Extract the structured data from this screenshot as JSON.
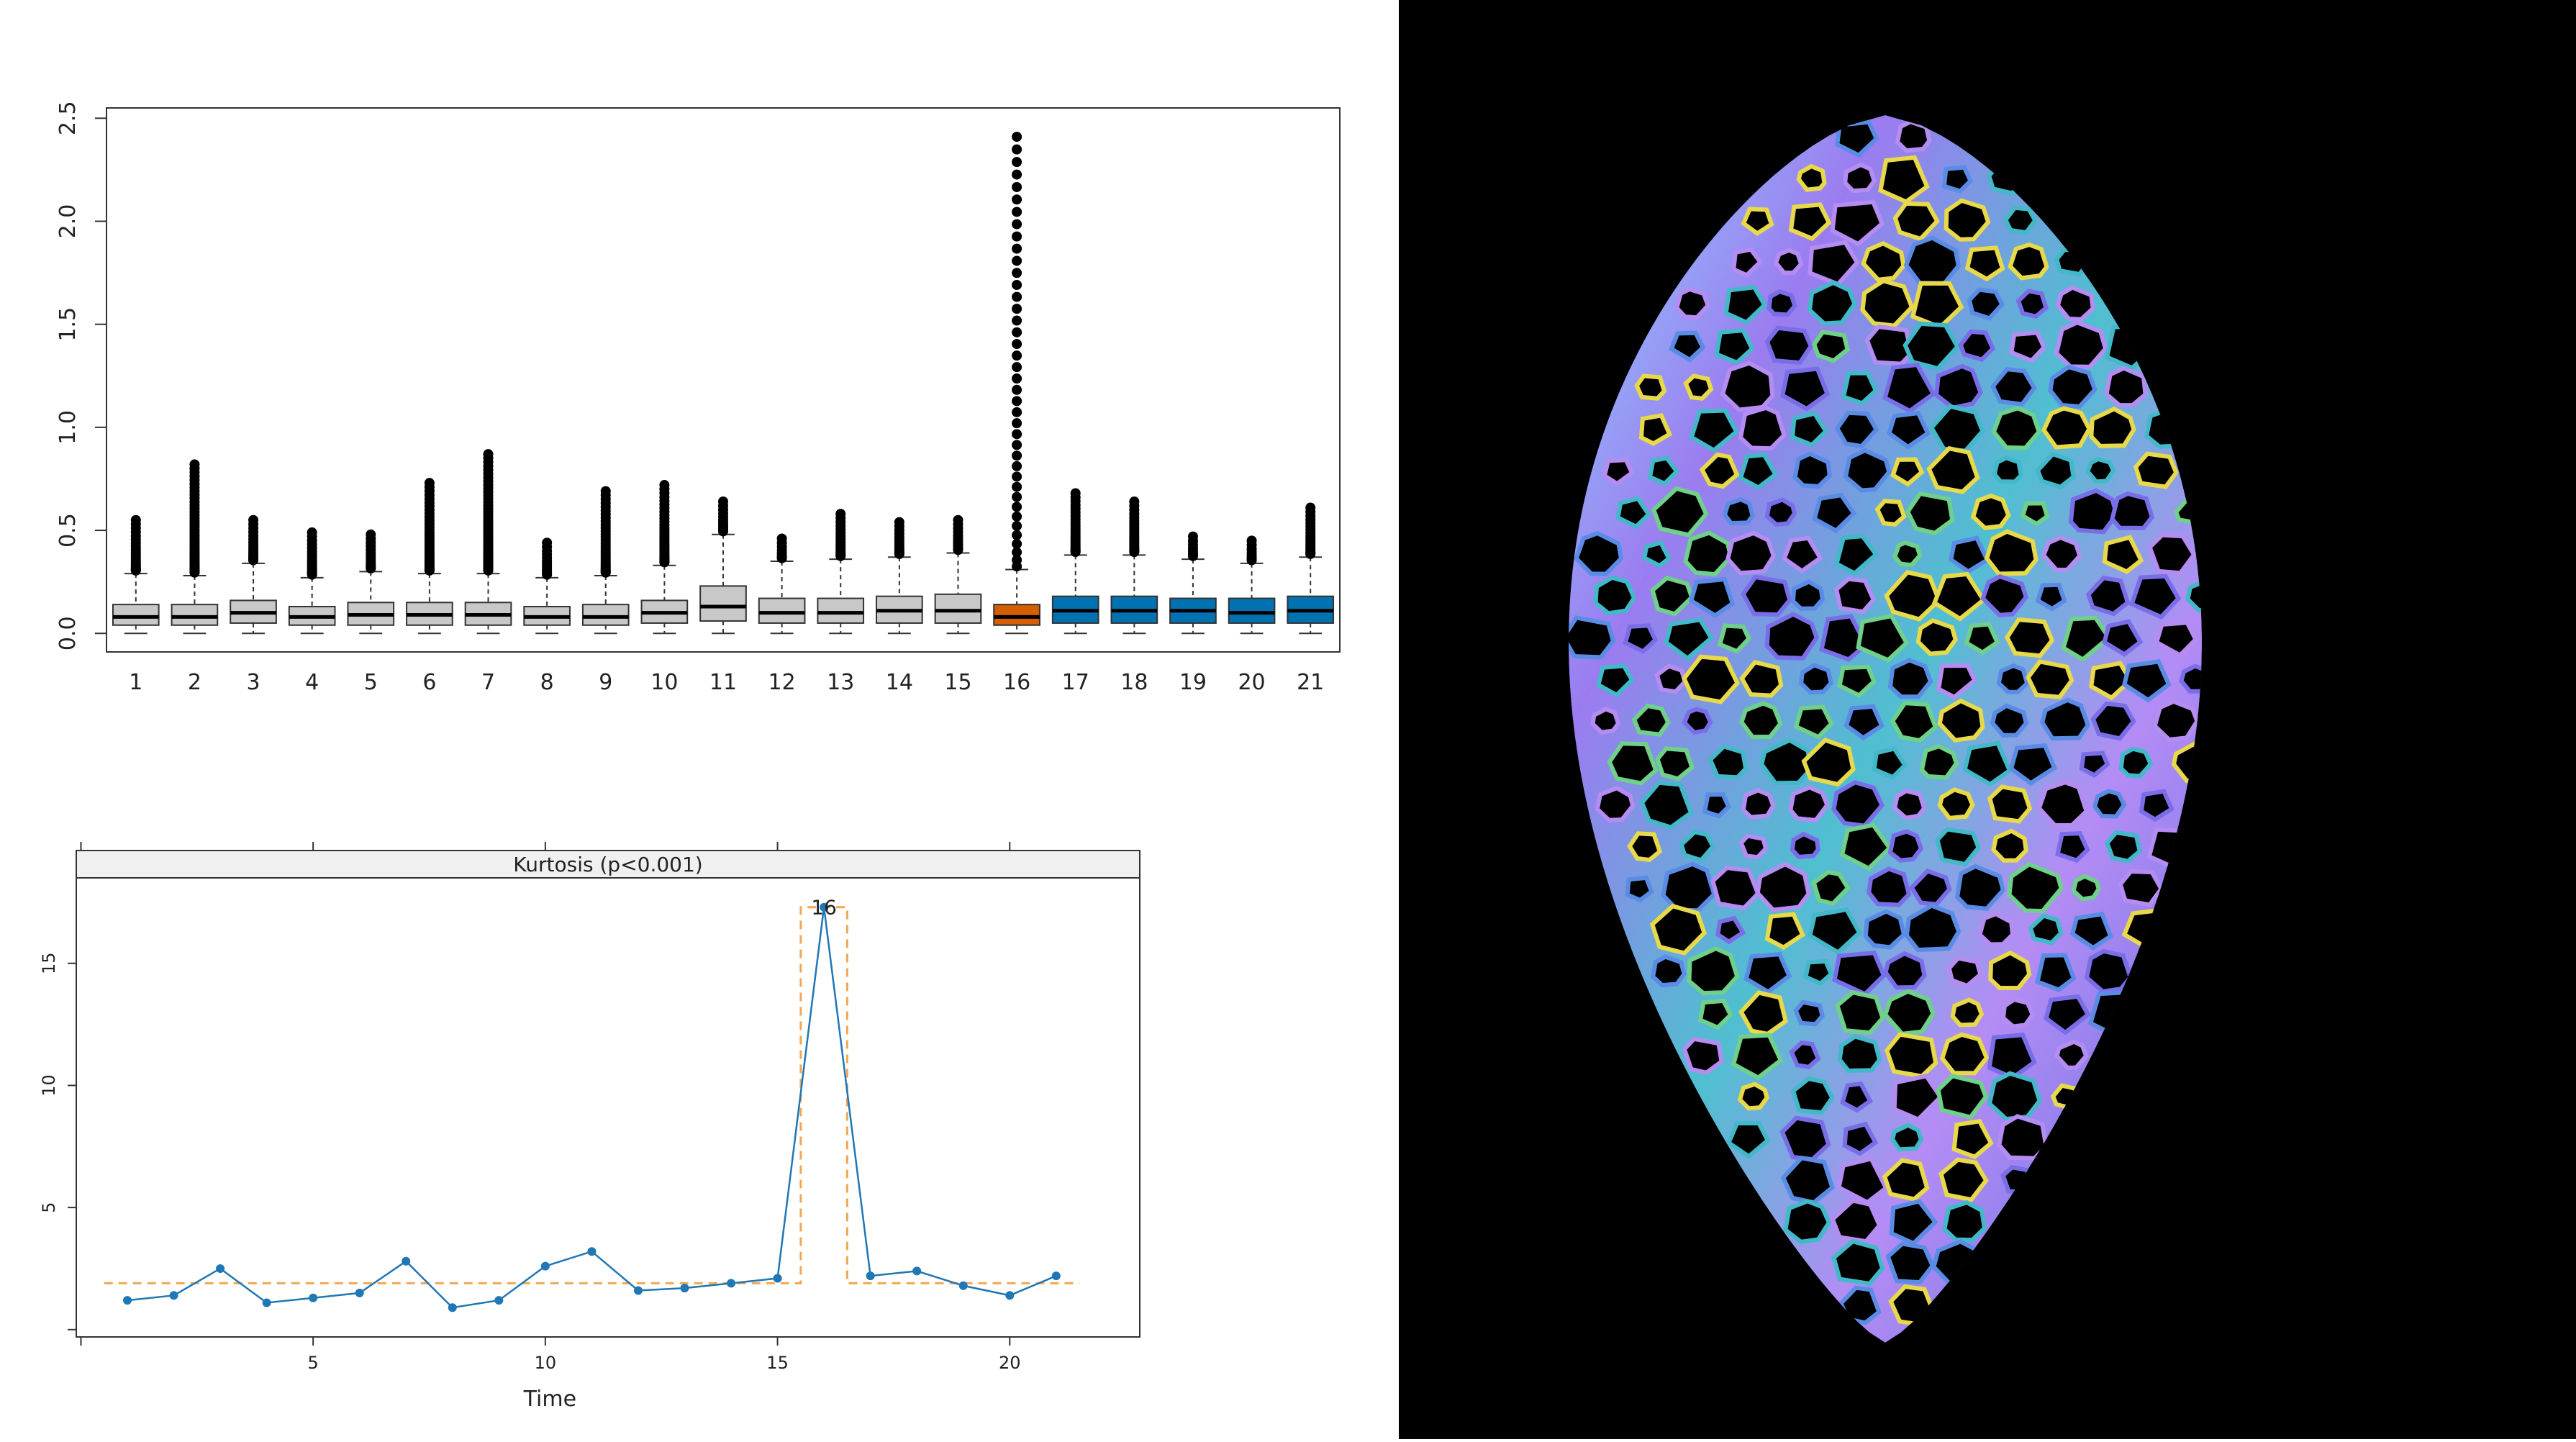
{
  "chart_data": [
    {
      "type": "box",
      "title": "",
      "xlabel": "",
      "ylabel": "",
      "ylim": [
        -0.09,
        2.55
      ],
      "y_ticks": [
        "0.0",
        "0.5",
        "1.0",
        "1.5",
        "2.0",
        "2.5"
      ],
      "y_tick_values": [
        0,
        0.5,
        1.0,
        1.5,
        2.0,
        2.5
      ],
      "categories": [
        "1",
        "2",
        "3",
        "4",
        "5",
        "6",
        "7",
        "8",
        "9",
        "10",
        "11",
        "12",
        "13",
        "14",
        "15",
        "16",
        "17",
        "18",
        "19",
        "20",
        "21"
      ],
      "colors": {
        "default": "#c8c8c8",
        "highlight": "#d55e00",
        "after": "#0072b2"
      },
      "boxes": [
        {
          "label": "1",
          "q1": 0.04,
          "median": 0.08,
          "q3": 0.14,
          "whisker_low": 0.0,
          "whisker_high": 0.29,
          "outlier_max": 0.55,
          "group": "default"
        },
        {
          "label": "2",
          "q1": 0.04,
          "median": 0.08,
          "q3": 0.14,
          "whisker_low": 0.0,
          "whisker_high": 0.28,
          "outlier_max": 0.82,
          "group": "default"
        },
        {
          "label": "3",
          "q1": 0.05,
          "median": 0.1,
          "q3": 0.16,
          "whisker_low": 0.0,
          "whisker_high": 0.34,
          "outlier_max": 0.55,
          "group": "default"
        },
        {
          "label": "4",
          "q1": 0.04,
          "median": 0.08,
          "q3": 0.13,
          "whisker_low": 0.0,
          "whisker_high": 0.27,
          "outlier_max": 0.49,
          "group": "default"
        },
        {
          "label": "5",
          "q1": 0.04,
          "median": 0.09,
          "q3": 0.15,
          "whisker_low": 0.0,
          "whisker_high": 0.3,
          "outlier_max": 0.48,
          "group": "default"
        },
        {
          "label": "6",
          "q1": 0.04,
          "median": 0.09,
          "q3": 0.15,
          "whisker_low": 0.0,
          "whisker_high": 0.29,
          "outlier_max": 0.73,
          "group": "default"
        },
        {
          "label": "7",
          "q1": 0.04,
          "median": 0.09,
          "q3": 0.15,
          "whisker_low": 0.0,
          "whisker_high": 0.29,
          "outlier_max": 0.87,
          "group": "default"
        },
        {
          "label": "8",
          "q1": 0.04,
          "median": 0.08,
          "q3": 0.13,
          "whisker_low": 0.0,
          "whisker_high": 0.27,
          "outlier_max": 0.44,
          "group": "default"
        },
        {
          "label": "9",
          "q1": 0.04,
          "median": 0.08,
          "q3": 0.14,
          "whisker_low": 0.0,
          "whisker_high": 0.28,
          "outlier_max": 0.69,
          "group": "default"
        },
        {
          "label": "10",
          "q1": 0.05,
          "median": 0.1,
          "q3": 0.16,
          "whisker_low": 0.0,
          "whisker_high": 0.33,
          "outlier_max": 0.72,
          "group": "default"
        },
        {
          "label": "11",
          "q1": 0.06,
          "median": 0.13,
          "q3": 0.23,
          "whisker_low": 0.0,
          "whisker_high": 0.48,
          "outlier_max": 0.64,
          "group": "default"
        },
        {
          "label": "12",
          "q1": 0.05,
          "median": 0.1,
          "q3": 0.17,
          "whisker_low": 0.0,
          "whisker_high": 0.35,
          "outlier_max": 0.46,
          "group": "default"
        },
        {
          "label": "13",
          "q1": 0.05,
          "median": 0.1,
          "q3": 0.17,
          "whisker_low": 0.0,
          "whisker_high": 0.36,
          "outlier_max": 0.58,
          "group": "default"
        },
        {
          "label": "14",
          "q1": 0.05,
          "median": 0.11,
          "q3": 0.18,
          "whisker_low": 0.0,
          "whisker_high": 0.37,
          "outlier_max": 0.54,
          "group": "default"
        },
        {
          "label": "15",
          "q1": 0.05,
          "median": 0.11,
          "q3": 0.19,
          "whisker_low": 0.0,
          "whisker_high": 0.39,
          "outlier_max": 0.55,
          "group": "default"
        },
        {
          "label": "16",
          "q1": 0.04,
          "median": 0.08,
          "q3": 0.14,
          "whisker_low": 0.0,
          "whisker_high": 0.31,
          "outlier_max": 2.41,
          "group": "highlight"
        },
        {
          "label": "17",
          "q1": 0.05,
          "median": 0.11,
          "q3": 0.18,
          "whisker_low": 0.0,
          "whisker_high": 0.38,
          "outlier_max": 0.68,
          "group": "after"
        },
        {
          "label": "18",
          "q1": 0.05,
          "median": 0.11,
          "q3": 0.18,
          "whisker_low": 0.0,
          "whisker_high": 0.38,
          "outlier_max": 0.64,
          "group": "after"
        },
        {
          "label": "19",
          "q1": 0.05,
          "median": 0.11,
          "q3": 0.17,
          "whisker_low": 0.0,
          "whisker_high": 0.36,
          "outlier_max": 0.47,
          "group": "after"
        },
        {
          "label": "20",
          "q1": 0.05,
          "median": 0.1,
          "q3": 0.17,
          "whisker_low": 0.0,
          "whisker_high": 0.34,
          "outlier_max": 0.45,
          "group": "after"
        },
        {
          "label": "21",
          "q1": 0.05,
          "median": 0.11,
          "q3": 0.18,
          "whisker_low": 0.0,
          "whisker_high": 0.37,
          "outlier_max": 0.61,
          "group": "after"
        }
      ],
      "grid": false
    },
    {
      "type": "line",
      "title": "Kurtosis (p<0.001)",
      "xlabel": "Time",
      "ylabel": "",
      "xlim": [
        -0.1,
        22.8
      ],
      "ylim": [
        -0.3,
        18.5
      ],
      "x_ticks": [
        "5",
        "10",
        "15",
        "20"
      ],
      "x_tick_values": [
        5,
        10,
        15,
        20
      ],
      "y_ticks": [
        "5",
        "10",
        "15"
      ],
      "y_tick_values": [
        5,
        10,
        15
      ],
      "series": [
        {
          "color": "#1f77b4",
          "x": [
            1,
            2,
            3,
            4,
            5,
            6,
            7,
            8,
            9,
            10,
            11,
            12,
            13,
            14,
            15,
            16,
            17,
            18,
            19,
            20,
            21
          ],
          "y": [
            1.2,
            1.4,
            2.5,
            1.1,
            1.3,
            1.5,
            2.8,
            0.9,
            1.2,
            2.6,
            3.2,
            1.6,
            1.7,
            1.9,
            2.1,
            17.3,
            2.2,
            2.4,
            1.8,
            1.4,
            2.2
          ]
        }
      ],
      "threshold": {
        "color": "#f5a653",
        "segments": [
          {
            "x": [
              0.5,
              15.5
            ],
            "y": 1.9
          },
          {
            "x": [
              15.5,
              16.5
            ],
            "y": 17.3
          },
          {
            "x": [
              16.5,
              21.5
            ],
            "y": 1.9
          }
        ]
      },
      "annotation": {
        "text": "16",
        "x": 16,
        "y": 17.3
      },
      "grid": false
    }
  ]
}
